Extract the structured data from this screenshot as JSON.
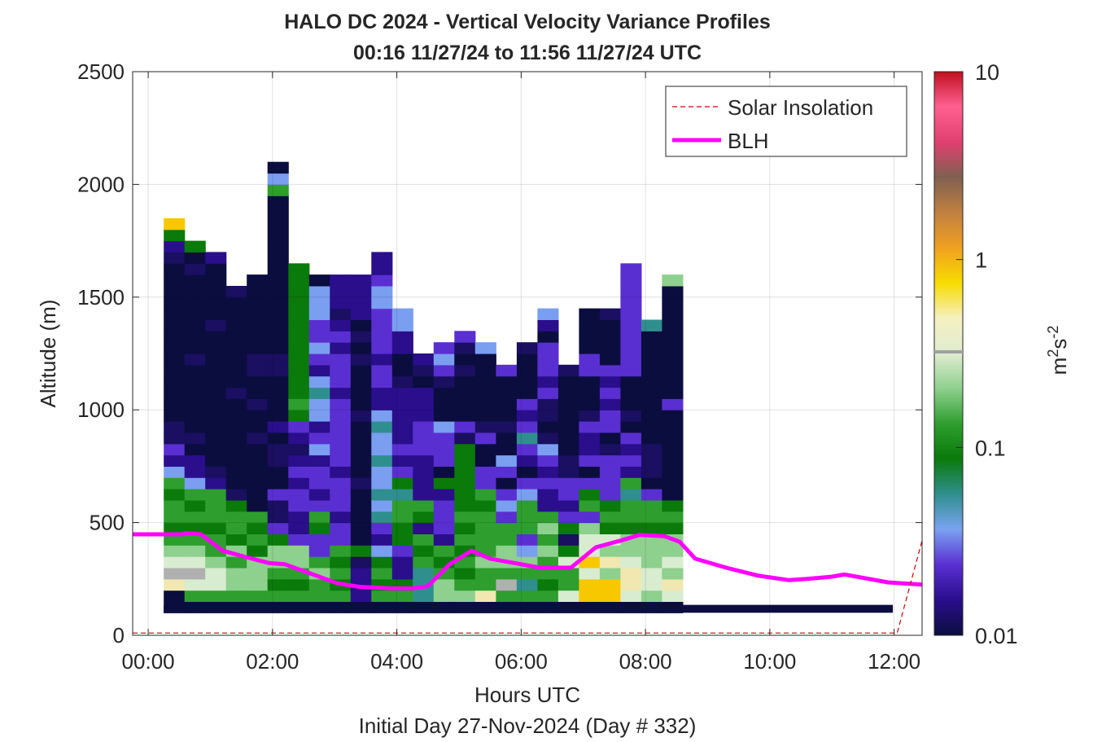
{
  "chart_data": {
    "type": "heatmap",
    "title": "HALO DC 2024 - Vertical Velocity Variance Profiles",
    "subtitle": "00:16 11/27/24 to 11:56 11/27/24  UTC",
    "xlabel": "Hours UTC",
    "xlabel2": "Initial Day 27-Nov-2024 (Day # 332)",
    "ylabel": "Altitude (m)",
    "xlim": [
      -0.25,
      12.45
    ],
    "ylim": [
      0,
      2500
    ],
    "x_ticks": [
      0,
      2,
      4,
      6,
      8,
      10,
      12
    ],
    "x_tick_labels": [
      "00:00",
      "02:00",
      "04:00",
      "06:00",
      "08:00",
      "10:00",
      "12:00"
    ],
    "y_ticks": [
      0,
      500,
      1000,
      1500,
      2000,
      2500
    ],
    "y_tick_labels": [
      "0",
      "500",
      "1000",
      "1500",
      "2000",
      "2500"
    ],
    "grid": true,
    "legend_position": "top-right",
    "colorbar": {
      "label_base": "m",
      "label_exp1": "2",
      "label_mid": "s",
      "label_exp2": "-2",
      "scale": "log",
      "range": [
        0.01,
        10
      ],
      "ticks": [
        0.01,
        0.1,
        1,
        10
      ],
      "tick_labels": [
        "0.01",
        "0.1",
        "1",
        "10"
      ],
      "colors": [
        "#0b0d3f",
        "#2a0e8c",
        "#5a2fd1",
        "#7aa2f0",
        "#2f8f8f",
        "#0a7a0a",
        "#2e9e2e",
        "#8ed08e",
        "#e0ecd0",
        "#f5f0c0",
        "#f7dc00",
        "#f0a020",
        "#c08040",
        "#806050",
        "#e04070",
        "#ff6090",
        "#c01020"
      ]
    },
    "heatmap": {
      "x_bin_hours": 0.334,
      "altitude_bin_m": 50,
      "x_start_hours": 0.25,
      "n_columns": 25,
      "palette": {
        "n": "#0b0d3f",
        "d": "#1a0f60",
        "p": "#2a0e8c",
        "v": "#5a2fd1",
        "l": "#7a9ef0",
        "t": "#2f8f8f",
        "g": "#0a7a0a",
        "m": "#2e9e2e",
        "h": "#8ed08e",
        "w": "#d8ecd0",
        "c": "#f0e8b0",
        "y": "#f7c800",
        "o": "#f0b020",
        "s": "#b0b0b0"
      },
      "columns": [
        {
          "from_m": 100,
          "cells": "nzcswhmgmmgmlpvddnnnnnnnnnnnnnndpgy"
        },
        {
          "from_m": 100,
          "cells": "nmwswhmgmgmlppndnnnnnndnnnnnnndng"
        },
        {
          "from_m": 100,
          "cells": "nmwwhmmgmmmpdnnnnnnnnnnnndnnnnnp"
        },
        {
          "from_m": 100,
          "cells": "nmhhmhgmmgdnnnnnnnndnnnnnnnnd"
        },
        {
          "from_m": 100,
          "cells": "nmhhhgmgmnnnnnndnndnnddnnnnnnn"
        },
        {
          "from_m": 100,
          "cells": "nmgmhhgvddvnnddnpnnnnddnnnnnnnnnnnnnnmln"
        },
        {
          "from_m": 100,
          "cells": "nmgmhhvppvvpvpdpvgmgggggggggggg"
        },
        {
          "from_m": 100,
          "cells": "nmmhmvvgmvpvvplvplltlpvlvvllln"
        },
        {
          "from_m": 100,
          "cells": "nmgmgmvvpvvvpvvvvvvpvvvpvpdppp"
        },
        {
          "from_m": 100,
          "cells": "npppdgnnnnndnnnnndnnnndndnpppp"
        },
        {
          "from_m": 100,
          "cells": "nmgmglpvtltlltlltlppvvpvvvvllvpp"
        },
        {
          "from_m": 100,
          "cells": "nmgppvggmmtgvpvpppppdnnppll"
        },
        {
          "from_m": 100,
          "cells": "ntttmgmpgmppppvvvpppndp"
        },
        {
          "from_m": 100,
          "cells": "nhhmgmpvvvpgnvvvlnnndvlv"
        },
        {
          "from_m": 100,
          "cells": "nhmgmgmgmggggggdvnnnndndv"
        },
        {
          "from_m": 100,
          "cells": "ncmmhmmmmgmvvnnvdnnnnnnl"
        },
        {
          "from_m": 100,
          "cells": "nmsmhhmmvlvnvlnndnnnnv"
        },
        {
          "from_m": 100,
          "cells": "nmtmhlvmmmlvnpvtvpvnnnnd"
        },
        {
          "from_m": 100,
          "cells": "nmgmmhmhmppvpvldnddvpvvvnpl"
        },
        {
          "from_m": 100,
          "cells": "nwmmwgdgvpvvddnnnnnnnd"
        },
        {
          "from_m": 100,
          "cells": "nyywywwhvmgvnvppvdnnnvvnnnn"
        },
        {
          "from_m": 100,
          "cells": "nyyhchwgmgvvvvdnvvpvpvnnnnd"
        },
        {
          "from_m": 100,
          "cells": "nwccwhhgmmtmpvpvndnnnvvvvvvvvvv"
        },
        {
          "from_m": 100,
          "cells": "nhwwhhhgmmvndddnnnnnnnnnnt"
        },
        {
          "from_m": 100,
          "cells": "nwchwhhgmgnnnnnnnnvnnnnnnnnnnh"
        }
      ]
    },
    "series": [
      {
        "name": "BLH",
        "color": "#ff00ff",
        "x": [
          -0.25,
          0.55,
          0.6,
          0.85,
          1.2,
          1.6,
          1.95,
          2.2,
          2.6,
          3.05,
          3.4,
          3.9,
          4.25,
          4.5,
          4.85,
          5.2,
          5.5,
          6.0,
          6.3,
          6.8,
          7.2,
          7.6,
          7.9,
          8.3,
          8.55,
          8.8,
          9.3,
          9.8,
          10.3,
          10.6,
          11.0,
          11.2,
          11.5,
          11.9,
          12.45
        ],
        "y": [
          448,
          448,
          453,
          448,
          375,
          345,
          320,
          315,
          275,
          230,
          215,
          208,
          208,
          218,
          315,
          375,
          340,
          315,
          300,
          300,
          390,
          420,
          445,
          440,
          415,
          340,
          300,
          265,
          245,
          250,
          260,
          270,
          255,
          235,
          225
        ]
      },
      {
        "name": "Solar Insolation",
        "color": "#cc0000",
        "dashed": true,
        "x": [
          -0.25,
          12.05,
          12.45
        ],
        "y": [
          10,
          10,
          420
        ]
      }
    ],
    "black_base_bar": {
      "from_m": 100,
      "to_m": 135,
      "x_from_hours": 0.25,
      "x_to_hours": 11.98
    }
  }
}
